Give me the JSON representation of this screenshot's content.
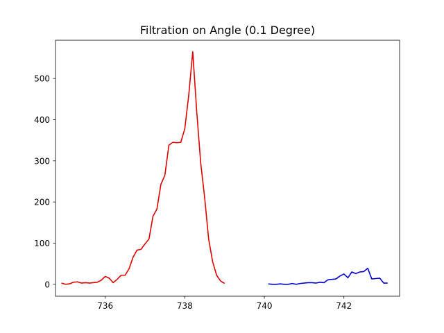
{
  "chart_data": {
    "type": "line",
    "title": "Filtration on Angle (0.1 Degree)",
    "xlabel": "",
    "ylabel": "",
    "xlim": [
      734.75,
      743.4
    ],
    "ylim": [
      -29,
      593
    ],
    "grid": false,
    "xticks": [
      736,
      738,
      740,
      742
    ],
    "yticks": [
      0,
      100,
      200,
      300,
      400,
      500
    ],
    "series": [
      {
        "color": "#e00000",
        "x": [
          734.9,
          735.0,
          735.1,
          735.2,
          735.3,
          735.4,
          735.5,
          735.6,
          735.7,
          735.8,
          735.9,
          736.0,
          736.1,
          736.2,
          736.3,
          736.4,
          736.5,
          736.6,
          736.7,
          736.8,
          736.9,
          737.0,
          737.1,
          737.2,
          737.3,
          737.4,
          737.5,
          737.6,
          737.7,
          737.8,
          737.9,
          738.0,
          738.1,
          738.2,
          738.3,
          738.4,
          738.5,
          738.6,
          738.7,
          738.8,
          738.9,
          739.0
        ],
        "values": [
          3,
          0,
          1,
          5,
          6,
          3,
          4,
          3,
          4,
          5,
          10,
          19,
          15,
          4,
          12,
          22,
          22,
          38,
          66,
          83,
          85,
          98,
          110,
          165,
          183,
          243,
          265,
          338,
          345,
          344,
          345,
          378,
          460,
          565,
          420,
          295,
          210,
          110,
          55,
          22,
          8,
          2
        ]
      },
      {
        "color": "#0000d0",
        "x": [
          740.1,
          740.2,
          740.3,
          740.4,
          740.5,
          740.6,
          740.7,
          740.8,
          740.9,
          741.0,
          741.1,
          741.2,
          741.3,
          741.4,
          741.5,
          741.6,
          741.7,
          741.8,
          741.9,
          742.0,
          742.1,
          742.2,
          742.3,
          742.4,
          742.5,
          742.6,
          742.7,
          742.8,
          742.9,
          743.0,
          743.1
        ],
        "values": [
          1,
          0,
          0,
          1,
          0,
          0,
          2,
          0,
          2,
          3,
          4,
          4,
          3,
          5,
          4,
          11,
          12,
          13,
          20,
          25,
          16,
          30,
          26,
          30,
          31,
          39,
          13,
          14,
          15,
          3,
          3
        ]
      }
    ]
  }
}
